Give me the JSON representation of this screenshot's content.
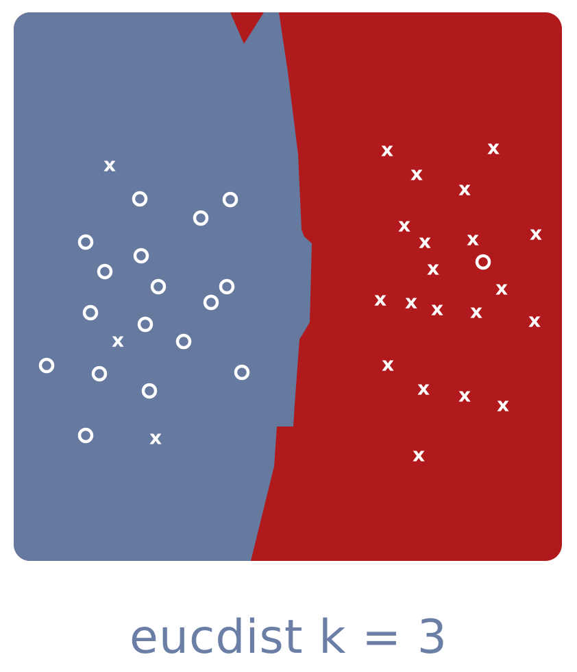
{
  "caption": "eucdist k = 3",
  "colors": {
    "class_o_region": "#66799f",
    "class_x_region": "#b01a1d",
    "marker": "#ffffff",
    "caption": "#6a7ea6"
  },
  "chart_data": {
    "type": "scatter",
    "title": "eucdist k = 3",
    "description_classes": [
      "o",
      "x"
    ],
    "xlim": [
      0,
      800
    ],
    "ylim": [
      0,
      800
    ],
    "points": [
      {
        "class": "x",
        "x": 140,
        "y": 222
      },
      {
        "class": "o",
        "x": 184,
        "y": 272
      },
      {
        "class": "o",
        "x": 273,
        "y": 300
      },
      {
        "class": "o",
        "x": 316,
        "y": 273
      },
      {
        "class": "o",
        "x": 105,
        "y": 335
      },
      {
        "class": "o",
        "x": 186,
        "y": 355
      },
      {
        "class": "o",
        "x": 133,
        "y": 378
      },
      {
        "class": "o",
        "x": 211,
        "y": 400
      },
      {
        "class": "o",
        "x": 311,
        "y": 400
      },
      {
        "class": "o",
        "x": 288,
        "y": 423
      },
      {
        "class": "o",
        "x": 112,
        "y": 438
      },
      {
        "class": "o",
        "x": 192,
        "y": 455
      },
      {
        "class": "x",
        "x": 152,
        "y": 478
      },
      {
        "class": "o",
        "x": 248,
        "y": 480
      },
      {
        "class": "o",
        "x": 48,
        "y": 515
      },
      {
        "class": "o",
        "x": 125,
        "y": 527
      },
      {
        "class": "o",
        "x": 333,
        "y": 525
      },
      {
        "class": "o",
        "x": 198,
        "y": 552
      },
      {
        "class": "o",
        "x": 105,
        "y": 617
      },
      {
        "class": "x",
        "x": 207,
        "y": 620
      },
      {
        "class": "x",
        "x": 545,
        "y": 200
      },
      {
        "class": "x",
        "x": 700,
        "y": 197
      },
      {
        "class": "x",
        "x": 588,
        "y": 235
      },
      {
        "class": "x",
        "x": 658,
        "y": 257
      },
      {
        "class": "x",
        "x": 570,
        "y": 310
      },
      {
        "class": "x",
        "x": 600,
        "y": 334
      },
      {
        "class": "x",
        "x": 670,
        "y": 330
      },
      {
        "class": "x",
        "x": 762,
        "y": 322
      },
      {
        "class": "o",
        "x": 685,
        "y": 364
      },
      {
        "class": "x",
        "x": 612,
        "y": 373
      },
      {
        "class": "x",
        "x": 712,
        "y": 402
      },
      {
        "class": "x",
        "x": 535,
        "y": 418
      },
      {
        "class": "x",
        "x": 580,
        "y": 422
      },
      {
        "class": "x",
        "x": 618,
        "y": 432
      },
      {
        "class": "x",
        "x": 675,
        "y": 436
      },
      {
        "class": "x",
        "x": 760,
        "y": 449
      },
      {
        "class": "x",
        "x": 546,
        "y": 513
      },
      {
        "class": "x",
        "x": 598,
        "y": 548
      },
      {
        "class": "x",
        "x": 658,
        "y": 558
      },
      {
        "class": "x",
        "x": 714,
        "y": 572
      },
      {
        "class": "x",
        "x": 591,
        "y": 645
      }
    ]
  }
}
